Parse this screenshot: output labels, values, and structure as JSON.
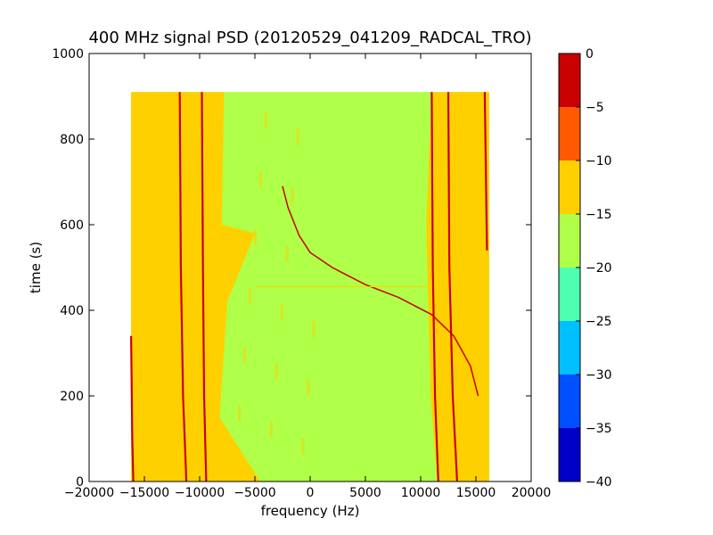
{
  "chart_data": {
    "type": "heatmap",
    "title": "400 MHz signal PSD (20120529_041209_RADCAL_TRO)",
    "xlabel": "frequency (Hz)",
    "ylabel": "time (s)",
    "xlim": [
      -20000,
      20000
    ],
    "ylim": [
      0,
      1000
    ],
    "x_ticks": [
      -20000,
      -15000,
      -10000,
      -5000,
      0,
      5000,
      10000,
      15000,
      20000
    ],
    "y_ticks": [
      0,
      200,
      400,
      600,
      800,
      1000
    ],
    "data_extent": {
      "x": [
        -16200,
        16200
      ],
      "y": [
        0,
        910
      ]
    },
    "grid": false,
    "colorbar": {
      "range": [
        -40,
        0
      ],
      "ticks": [
        0,
        -5,
        -10,
        -15,
        -20,
        -25,
        -30,
        -35,
        -40
      ],
      "levels": [
        {
          "range": [
            -40,
            -35
          ],
          "color": "#0000c8"
        },
        {
          "range": [
            -35,
            -30
          ],
          "color": "#0050ff"
        },
        {
          "range": [
            -30,
            -25
          ],
          "color": "#00c0ff"
        },
        {
          "range": [
            -25,
            -20
          ],
          "color": "#4dffb0"
        },
        {
          "range": [
            -20,
            -15
          ],
          "color": "#b0ff48"
        },
        {
          "range": [
            -15,
            -10
          ],
          "color": "#ffd000"
        },
        {
          "range": [
            -10,
            -5
          ],
          "color": "#ff5a00"
        },
        {
          "range": [
            -5,
            0
          ],
          "color": "#c80000"
        }
      ]
    },
    "background_level": [
      -20,
      -15
    ],
    "edge_level": [
      -15,
      -10
    ],
    "line_level": [
      -5,
      0
    ],
    "vertical_lines": [
      {
        "points": [
          [
            -16000,
            0
          ],
          [
            -16100,
            100
          ],
          [
            -16200,
            340
          ]
        ]
      },
      {
        "points": [
          [
            -11200,
            0
          ],
          [
            -11500,
            200
          ],
          [
            -11700,
            500
          ],
          [
            -11800,
            910
          ]
        ]
      },
      {
        "points": [
          [
            -9400,
            0
          ],
          [
            -9600,
            200
          ],
          [
            -9700,
            500
          ],
          [
            -9800,
            910
          ]
        ]
      },
      {
        "points": [
          [
            11600,
            0
          ],
          [
            11300,
            200
          ],
          [
            11100,
            500
          ],
          [
            11000,
            910
          ]
        ]
      },
      {
        "points": [
          [
            13300,
            0
          ],
          [
            12900,
            200
          ],
          [
            12600,
            500
          ],
          [
            12500,
            910
          ]
        ]
      },
      {
        "points": [
          [
            16000,
            540
          ],
          [
            15800,
            910
          ]
        ]
      }
    ],
    "sweep_line": {
      "points": [
        [
          -2500,
          690
        ],
        [
          -2000,
          640
        ],
        [
          -1000,
          575
        ],
        [
          0,
          535
        ],
        [
          2000,
          500
        ],
        [
          5000,
          460
        ],
        [
          8000,
          430
        ],
        [
          11000,
          390
        ],
        [
          13000,
          340
        ],
        [
          14500,
          270
        ],
        [
          15200,
          200
        ]
      ]
    },
    "horizontal_line": {
      "y": 455,
      "x": [
        -5000,
        11000
      ],
      "level": [
        -15,
        -10
      ]
    }
  }
}
